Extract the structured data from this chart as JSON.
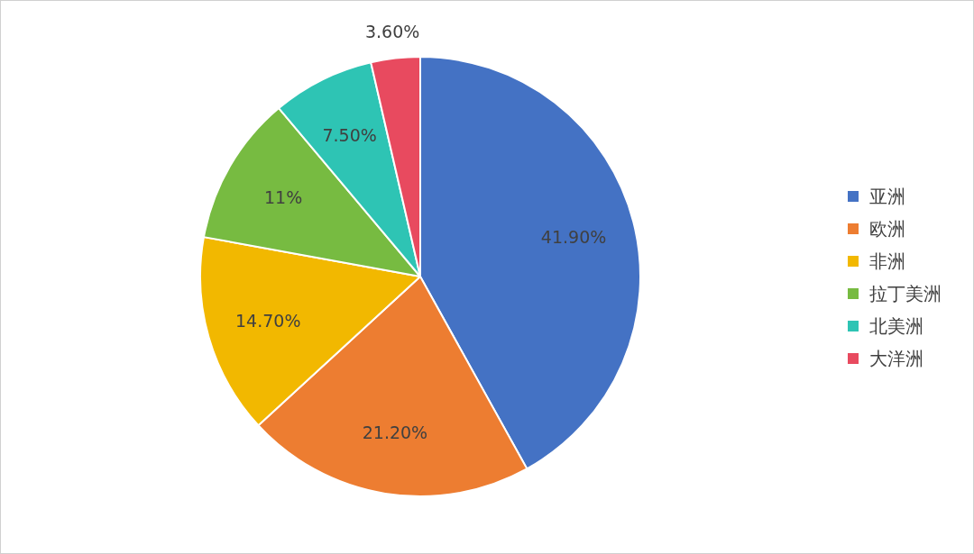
{
  "chart_data": {
    "type": "pie",
    "categories": [
      "亚洲",
      "欧洲",
      "非洲",
      "拉丁美洲",
      "北美洲",
      "大洋洲"
    ],
    "values": [
      41.9,
      21.2,
      14.7,
      11,
      7.5,
      3.6
    ],
    "colors": [
      "#4472c4",
      "#ed7d31",
      "#f2b800",
      "#77bb41",
      "#2ec4b4",
      "#e84a5f"
    ],
    "value_labels": [
      "41.90%",
      "21.20%",
      "14.70%",
      "11%",
      "7.50%",
      "3.60%"
    ],
    "legend": "right"
  }
}
